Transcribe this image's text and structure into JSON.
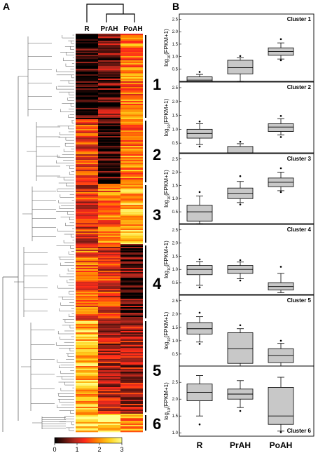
{
  "panels": {
    "a_label": "A",
    "b_label": "B"
  },
  "heatmap": {
    "columns": [
      "R",
      "PrAH",
      "PoAH"
    ],
    "cluster_labels": [
      "1",
      "2",
      "3",
      "4",
      "5",
      "6"
    ],
    "colorbar": {
      "ticks": [
        "0",
        "1",
        "2",
        "3"
      ],
      "colors": [
        "#000000",
        "#c0392b",
        "#ff3a1e",
        "#ff7a00",
        "#ffd21f",
        "#ffff66"
      ]
    }
  },
  "boxplots": {
    "ylabel_main": "log",
    "ylabel_sub": "10",
    "ylabel_rest": "(FPKM+1)",
    "categories": [
      "R",
      "PrAH",
      "PoAH"
    ]
  },
  "chart_data": [
    {
      "type": "heatmap",
      "columns": [
        "R",
        "PrAH",
        "PoAH"
      ],
      "clusters": [
        "1",
        "2",
        "3",
        "4",
        "5",
        "6"
      ],
      "colorbar_range": [
        0,
        3
      ]
    },
    {
      "type": "box",
      "title": "Cluster 1",
      "categories": [
        "R",
        "PrAH",
        "PoAH"
      ],
      "ylim": [
        0,
        2.6
      ],
      "yticks": [
        "0.5",
        "1.0",
        "1.5",
        "2.0",
        "2.5"
      ],
      "boxes": [
        {
          "min": 0.0,
          "q1": 0.0,
          "median": 0.05,
          "q3": 0.18,
          "max": 0.28,
          "outliers": [
            0.38
          ]
        },
        {
          "min": 0.0,
          "q1": 0.3,
          "median": 0.55,
          "q3": 0.85,
          "max": 0.95,
          "outliers": [
            1.02
          ]
        },
        {
          "min": 0.9,
          "q1": 1.05,
          "median": 1.2,
          "q3": 1.35,
          "max": 1.55,
          "outliers": [
            1.7,
            0.85
          ]
        }
      ]
    },
    {
      "type": "box",
      "title": "Cluster 2",
      "categories": [
        "R",
        "PrAH",
        "PoAH"
      ],
      "ylim": [
        0.15,
        2.6
      ],
      "yticks": [
        "0.5",
        "1.0",
        "1.5",
        "2.0",
        "2.5"
      ],
      "boxes": [
        {
          "min": 0.45,
          "q1": 0.68,
          "median": 0.85,
          "q3": 1.0,
          "max": 1.2,
          "outliers": [
            1.28,
            0.38
          ]
        },
        {
          "min": 0.15,
          "q1": 0.15,
          "median": 0.15,
          "q3": 0.38,
          "max": 0.48,
          "outliers": [
            0.55
          ]
        },
        {
          "min": 0.8,
          "q1": 0.92,
          "median": 1.08,
          "q3": 1.2,
          "max": 1.38,
          "outliers": [
            1.48,
            0.72
          ]
        }
      ]
    },
    {
      "type": "box",
      "title": "Cluster 3",
      "categories": [
        "R",
        "PrAH",
        "PoAH"
      ],
      "ylim": [
        0.05,
        2.6
      ],
      "yticks": [
        "0.5",
        "1.0",
        "1.5",
        "2.0",
        "2.5"
      ],
      "boxes": [
        {
          "min": 0.05,
          "q1": 0.15,
          "median": 0.5,
          "q3": 0.75,
          "max": 1.1,
          "outliers": [
            1.25
          ]
        },
        {
          "min": 0.85,
          "q1": 1.0,
          "median": 1.2,
          "q3": 1.4,
          "max": 1.65,
          "outliers": [
            1.85,
            0.78
          ]
        },
        {
          "min": 1.3,
          "q1": 1.45,
          "median": 1.62,
          "q3": 1.78,
          "max": 2.0,
          "outliers": [
            2.15,
            1.25
          ]
        }
      ]
    },
    {
      "type": "box",
      "title": "Cluster 4",
      "categories": [
        "R",
        "PrAH",
        "PoAH"
      ],
      "ylim": [
        0.05,
        2.6
      ],
      "yticks": [
        "0.5",
        "1.0",
        "1.5",
        "2.0",
        "2.5"
      ],
      "boxes": [
        {
          "min": 0.4,
          "q1": 0.8,
          "median": 1.0,
          "q3": 1.15,
          "max": 1.3,
          "outliers": [
            1.38,
            0.32
          ]
        },
        {
          "min": 0.65,
          "q1": 0.85,
          "median": 1.0,
          "q3": 1.15,
          "max": 1.28,
          "outliers": [
            1.35,
            0.58
          ]
        },
        {
          "min": 0.12,
          "q1": 0.22,
          "median": 0.35,
          "q3": 0.5,
          "max": 0.85,
          "outliers": [
            1.1
          ]
        }
      ]
    },
    {
      "type": "box",
      "title": "Cluster 5",
      "categories": [
        "R",
        "PrAH",
        "PoAH"
      ],
      "ylim": [
        0.05,
        2.6
      ],
      "yticks": [
        "0.5",
        "1.0",
        "1.5",
        "2.0",
        "2.5"
      ],
      "boxes": [
        {
          "min": 0.95,
          "q1": 1.25,
          "median": 1.45,
          "q3": 1.68,
          "max": 1.9,
          "outliers": [
            2.05,
            0.88
          ]
        },
        {
          "min": 0.05,
          "q1": 0.15,
          "median": 0.7,
          "q3": 1.3,
          "max": 1.45,
          "outliers": [
            1.58
          ]
        },
        {
          "min": 0.05,
          "q1": 0.18,
          "median": 0.45,
          "q3": 0.7,
          "max": 0.9,
          "outliers": [
            1.0
          ]
        }
      ]
    },
    {
      "type": "box",
      "title": "Cluster 6",
      "categories": [
        "R",
        "PrAH",
        "PoAH"
      ],
      "ylim": [
        0.9,
        2.9
      ],
      "yticks": [
        "1.0",
        "1.5",
        "2.0",
        "2.5"
      ],
      "boxes": [
        {
          "min": 1.5,
          "q1": 1.95,
          "median": 2.2,
          "q3": 2.45,
          "max": 2.7,
          "outliers": [
            1.25
          ]
        },
        {
          "min": 1.75,
          "q1": 2.0,
          "median": 2.15,
          "q3": 2.3,
          "max": 2.55,
          "outliers": [
            1.65
          ]
        },
        {
          "min": 1.05,
          "q1": 1.25,
          "median": 1.5,
          "q3": 2.35,
          "max": 2.65,
          "outliers": [
            1.02
          ]
        }
      ]
    }
  ]
}
